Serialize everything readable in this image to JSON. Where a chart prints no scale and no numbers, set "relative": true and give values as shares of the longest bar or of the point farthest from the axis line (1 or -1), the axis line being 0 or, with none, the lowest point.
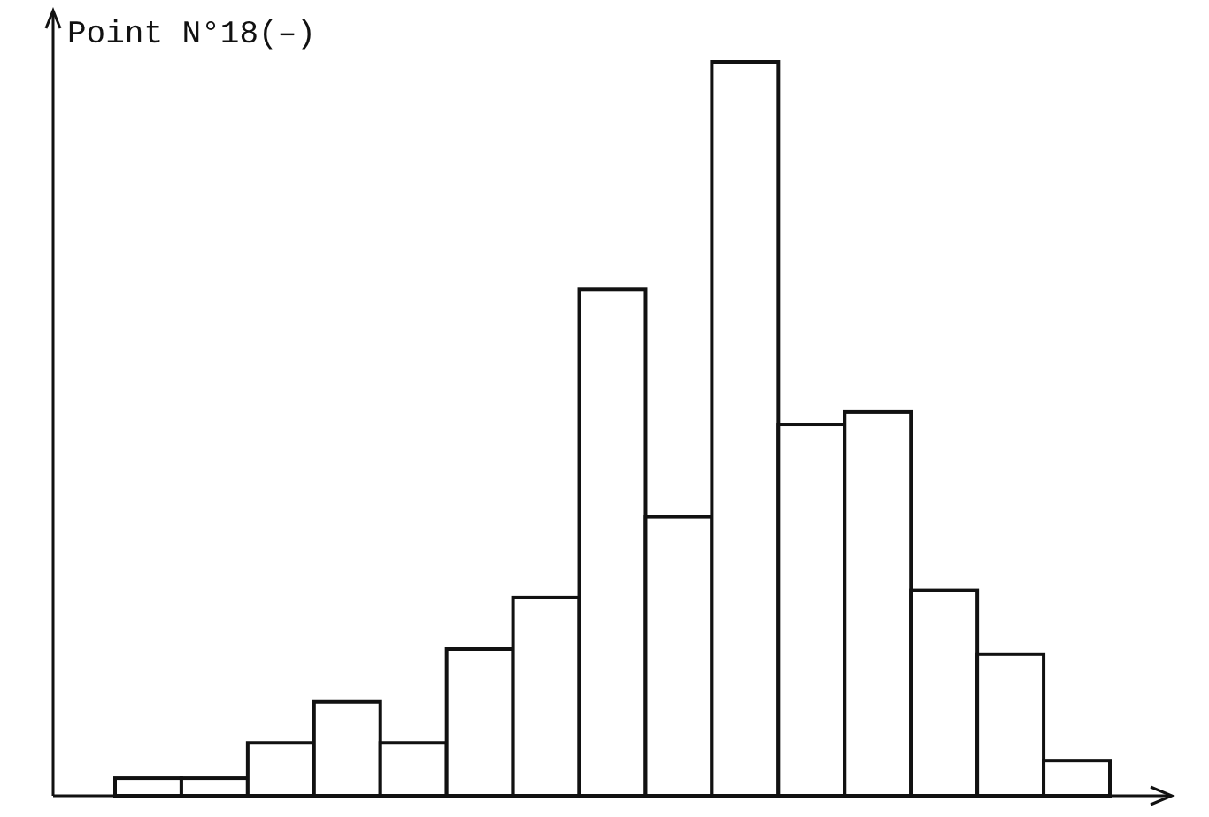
{
  "chart_data": {
    "type": "bar",
    "title": "Point N°18(–)",
    "relative": true,
    "color": "#ffffff",
    "categories": [
      null,
      null,
      null,
      null,
      null,
      null,
      null,
      null,
      null,
      null,
      null,
      null,
      null,
      null,
      null
    ],
    "values": [
      0.024,
      0.024,
      0.072,
      0.128,
      0.072,
      0.2,
      0.27,
      0.69,
      0.38,
      1,
      0.506,
      0.523,
      0.28,
      0.193,
      0.048
    ]
  }
}
